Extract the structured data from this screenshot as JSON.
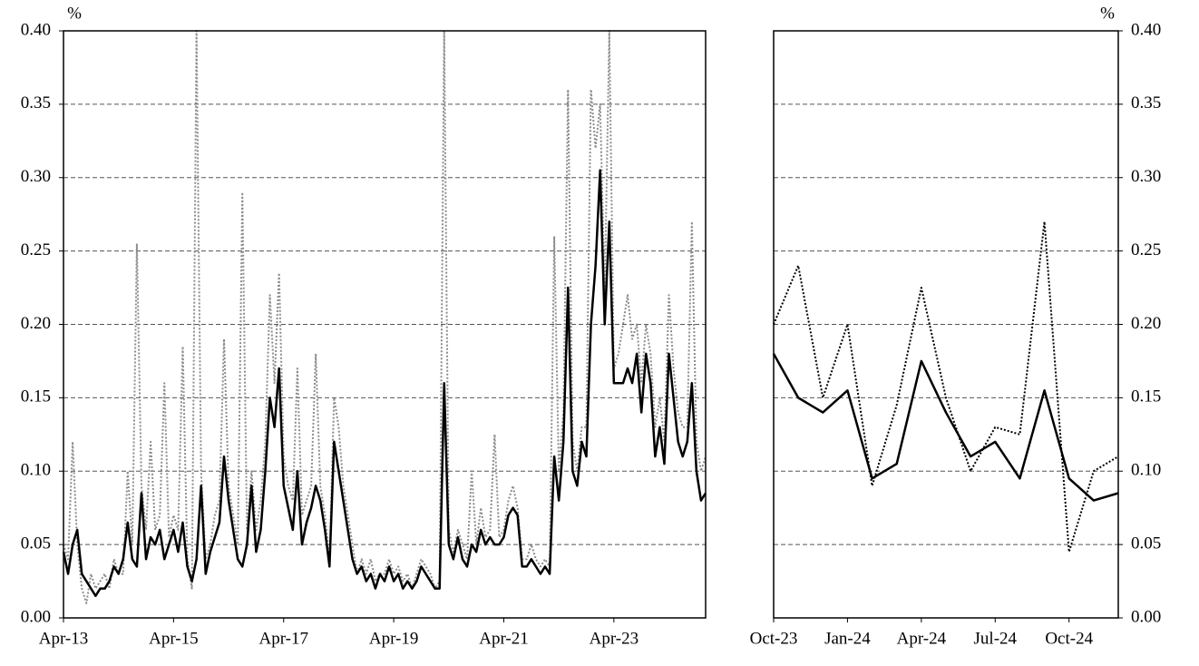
{
  "chart_data": [
    {
      "type": "line",
      "ylabel": "%",
      "y_axis_side": "left",
      "grid": true,
      "xlim": [
        "2013-04",
        "2024-12"
      ],
      "ylim": [
        0,
        0.4
      ],
      "yticks": [
        {
          "value": 0,
          "label": "0.00"
        },
        {
          "value": 0.05,
          "label": "0.05"
        },
        {
          "value": 0.1,
          "label": "0.10"
        },
        {
          "value": 0.15,
          "label": "0.15"
        },
        {
          "value": 0.2,
          "label": "0.20"
        },
        {
          "value": 0.25,
          "label": "0.25"
        },
        {
          "value": 0.3,
          "label": "0.30"
        },
        {
          "value": 0.35,
          "label": "0.35"
        },
        {
          "value": 0.4,
          "label": "0.40"
        }
      ],
      "xticks": [
        {
          "value": "2013-04",
          "label": "Apr-13"
        },
        {
          "value": "2015-04",
          "label": "Apr-15"
        },
        {
          "value": "2017-04",
          "label": "Apr-17"
        },
        {
          "value": "2019-04",
          "label": "Apr-19"
        },
        {
          "value": "2021-04",
          "label": "Apr-21"
        },
        {
          "value": "2023-04",
          "label": "Apr-23"
        }
      ],
      "x": [
        "2013-04",
        "2013-05",
        "2013-06",
        "2013-07",
        "2013-08",
        "2013-09",
        "2013-10",
        "2013-11",
        "2013-12",
        "2014-01",
        "2014-02",
        "2014-03",
        "2014-04",
        "2014-05",
        "2014-06",
        "2014-07",
        "2014-08",
        "2014-09",
        "2014-10",
        "2014-11",
        "2014-12",
        "2015-01",
        "2015-02",
        "2015-03",
        "2015-04",
        "2015-05",
        "2015-06",
        "2015-07",
        "2015-08",
        "2015-09",
        "2015-10",
        "2015-11",
        "2015-12",
        "2016-01",
        "2016-02",
        "2016-03",
        "2016-04",
        "2016-05",
        "2016-06",
        "2016-07",
        "2016-08",
        "2016-09",
        "2016-10",
        "2016-11",
        "2016-12",
        "2017-01",
        "2017-02",
        "2017-03",
        "2017-04",
        "2017-05",
        "2017-06",
        "2017-07",
        "2017-08",
        "2017-09",
        "2017-10",
        "2017-11",
        "2017-12",
        "2018-01",
        "2018-02",
        "2018-03",
        "2018-04",
        "2018-05",
        "2018-06",
        "2018-07",
        "2018-08",
        "2018-09",
        "2018-10",
        "2018-11",
        "2018-12",
        "2019-01",
        "2019-02",
        "2019-03",
        "2019-04",
        "2019-05",
        "2019-06",
        "2019-07",
        "2019-08",
        "2019-09",
        "2019-10",
        "2019-11",
        "2019-12",
        "2020-01",
        "2020-02",
        "2020-03",
        "2020-04",
        "2020-05",
        "2020-06",
        "2020-07",
        "2020-08",
        "2020-09",
        "2020-10",
        "2020-11",
        "2020-12",
        "2021-01",
        "2021-02",
        "2021-03",
        "2021-04",
        "2021-05",
        "2021-06",
        "2021-07",
        "2021-08",
        "2021-09",
        "2021-10",
        "2021-11",
        "2021-12",
        "2022-01",
        "2022-02",
        "2022-03",
        "2022-04",
        "2022-05",
        "2022-06",
        "2022-07",
        "2022-08",
        "2022-09",
        "2022-10",
        "2022-11",
        "2022-12",
        "2023-01",
        "2023-02",
        "2023-03",
        "2023-04",
        "2023-05",
        "2023-06",
        "2023-07",
        "2023-08",
        "2023-09",
        "2023-10",
        "2023-11",
        "2023-12",
        "2024-01",
        "2024-02",
        "2024-03",
        "2024-04",
        "2024-05",
        "2024-06",
        "2024-07",
        "2024-08",
        "2024-09",
        "2024-10",
        "2024-11",
        "2024-12"
      ],
      "series": [
        {
          "color": "#8c8c8c",
          "style": "dotted",
          "values": [
            0.05,
            0.04,
            0.12,
            0.05,
            0.02,
            0.01,
            0.03,
            0.02,
            0.025,
            0.03,
            0.02,
            0.04,
            0.03,
            0.03,
            0.1,
            0.05,
            0.255,
            0.09,
            0.06,
            0.12,
            0.06,
            0.07,
            0.16,
            0.055,
            0.07,
            0.06,
            0.185,
            0.04,
            0.02,
            0.4,
            0.1,
            0.04,
            0.05,
            0.07,
            0.08,
            0.19,
            0.09,
            0.07,
            0.05,
            0.29,
            0.06,
            0.1,
            0.06,
            0.08,
            0.12,
            0.22,
            0.16,
            0.235,
            0.11,
            0.09,
            0.08,
            0.17,
            0.07,
            0.08,
            0.09,
            0.18,
            0.09,
            0.07,
            0.04,
            0.15,
            0.13,
            0.09,
            0.07,
            0.05,
            0.03,
            0.04,
            0.03,
            0.04,
            0.025,
            0.03,
            0.03,
            0.04,
            0.03,
            0.035,
            0.025,
            0.03,
            0.02,
            0.03,
            0.04,
            0.035,
            0.03,
            0.02,
            0.025,
            0.4,
            0.06,
            0.045,
            0.06,
            0.05,
            0.04,
            0.1,
            0.05,
            0.075,
            0.055,
            0.06,
            0.125,
            0.055,
            0.06,
            0.08,
            0.09,
            0.075,
            0.04,
            0.04,
            0.05,
            0.04,
            0.035,
            0.04,
            0.035,
            0.26,
            0.1,
            0.14,
            0.36,
            0.12,
            0.1,
            0.13,
            0.13,
            0.36,
            0.32,
            0.35,
            0.22,
            0.4,
            0.17,
            0.18,
            0.2,
            0.22,
            0.19,
            0.2,
            0.16,
            0.2,
            0.18,
            0.13,
            0.15,
            0.12,
            0.22,
            0.17,
            0.14,
            0.13,
            0.13,
            0.27,
            0.12,
            0.1,
            0.11
          ]
        },
        {
          "color": "#000000",
          "style": "solid",
          "values": [
            0.045,
            0.03,
            0.05,
            0.06,
            0.03,
            0.025,
            0.02,
            0.015,
            0.02,
            0.02,
            0.025,
            0.035,
            0.03,
            0.04,
            0.065,
            0.04,
            0.035,
            0.085,
            0.04,
            0.055,
            0.05,
            0.06,
            0.04,
            0.05,
            0.06,
            0.045,
            0.065,
            0.035,
            0.025,
            0.04,
            0.09,
            0.03,
            0.045,
            0.055,
            0.065,
            0.11,
            0.08,
            0.06,
            0.04,
            0.035,
            0.05,
            0.09,
            0.045,
            0.06,
            0.1,
            0.15,
            0.13,
            0.17,
            0.09,
            0.075,
            0.06,
            0.1,
            0.05,
            0.065,
            0.075,
            0.09,
            0.08,
            0.06,
            0.035,
            0.12,
            0.1,
            0.08,
            0.06,
            0.04,
            0.03,
            0.035,
            0.025,
            0.03,
            0.02,
            0.03,
            0.025,
            0.035,
            0.025,
            0.03,
            0.02,
            0.025,
            0.02,
            0.025,
            0.035,
            0.03,
            0.025,
            0.02,
            0.02,
            0.16,
            0.05,
            0.04,
            0.055,
            0.04,
            0.035,
            0.05,
            0.045,
            0.06,
            0.05,
            0.055,
            0.05,
            0.05,
            0.055,
            0.07,
            0.075,
            0.07,
            0.035,
            0.035,
            0.04,
            0.035,
            0.03,
            0.035,
            0.03,
            0.11,
            0.08,
            0.12,
            0.225,
            0.1,
            0.09,
            0.12,
            0.11,
            0.2,
            0.24,
            0.305,
            0.2,
            0.27,
            0.16,
            0.16,
            0.16,
            0.17,
            0.16,
            0.18,
            0.14,
            0.18,
            0.16,
            0.11,
            0.13,
            0.105,
            0.18,
            0.15,
            0.12,
            0.11,
            0.12,
            0.16,
            0.1,
            0.08,
            0.085
          ]
        }
      ]
    },
    {
      "type": "line",
      "ylabel": "%",
      "y_axis_side": "right",
      "grid": true,
      "xlim": [
        "2023-10",
        "2024-12"
      ],
      "ylim": [
        0,
        0.4
      ],
      "yticks": [
        {
          "value": 0,
          "label": "0.00"
        },
        {
          "value": 0.05,
          "label": "0.05"
        },
        {
          "value": 0.1,
          "label": "0.10"
        },
        {
          "value": 0.15,
          "label": "0.15"
        },
        {
          "value": 0.2,
          "label": "0.20"
        },
        {
          "value": 0.25,
          "label": "0.25"
        },
        {
          "value": 0.3,
          "label": "0.30"
        },
        {
          "value": 0.35,
          "label": "0.35"
        },
        {
          "value": 0.4,
          "label": "0.40"
        }
      ],
      "xticks": [
        {
          "value": "2023-10",
          "label": "Oct-23"
        },
        {
          "value": "2024-01",
          "label": "Jan-24"
        },
        {
          "value": "2024-04",
          "label": "Apr-24"
        },
        {
          "value": "2024-07",
          "label": "Jul-24"
        },
        {
          "value": "2024-10",
          "label": "Oct-24"
        }
      ],
      "x": [
        "2023-10",
        "2023-11",
        "2023-12",
        "2024-01",
        "2024-02",
        "2024-03",
        "2024-04",
        "2024-05",
        "2024-06",
        "2024-07",
        "2024-08",
        "2024-09",
        "2024-10",
        "2024-11",
        "2024-12"
      ],
      "series": [
        {
          "color": "#000000",
          "style": "dotted",
          "values": [
            0.2,
            0.24,
            0.15,
            0.2,
            0.09,
            0.145,
            0.225,
            0.15,
            0.1,
            0.13,
            0.125,
            0.27,
            0.045,
            0.1,
            0.11
          ]
        },
        {
          "color": "#000000",
          "style": "solid",
          "values": [
            0.18,
            0.15,
            0.14,
            0.155,
            0.095,
            0.105,
            0.175,
            0.14,
            0.11,
            0.12,
            0.095,
            0.155,
            0.095,
            0.08,
            0.085
          ]
        }
      ]
    }
  ]
}
